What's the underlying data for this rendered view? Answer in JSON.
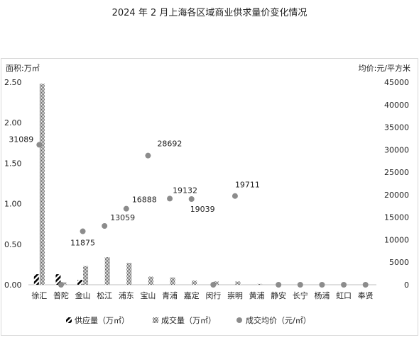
{
  "chart_data": {
    "type": "bar+scatter",
    "title": "2024 年 2 月上海各区域商业供求量价变化情况",
    "y_left_label": "面积:万㎡",
    "y_right_label": "均价:元/平方米",
    "y_left_ticks": [
      "0.00",
      "0.50",
      "1.00",
      "1.50",
      "2.00",
      "2.50"
    ],
    "y_right_ticks": [
      "0",
      "5000",
      "10000",
      "15000",
      "20000",
      "25000",
      "30000",
      "35000",
      "40000",
      "45000"
    ],
    "ylim_left": [
      0,
      2.5
    ],
    "ylim_right": [
      0,
      45000
    ],
    "categories": [
      "徐汇",
      "普陀",
      "金山",
      "松江",
      "浦东",
      "宝山",
      "青浦",
      "嘉定",
      "闵行",
      "崇明",
      "黄浦",
      "静安",
      "长宁",
      "杨浦",
      "虹口",
      "奉贤"
    ],
    "series": [
      {
        "name": "供应量（万㎡）",
        "kind": "bar",
        "axis": "left",
        "pattern": "diag",
        "color": "#000000",
        "values": [
          0.13,
          0.13,
          0.06,
          0,
          0,
          0,
          0,
          0,
          0,
          0,
          0,
          0,
          0,
          0,
          0,
          0
        ]
      },
      {
        "name": "成交量（万㎡）",
        "kind": "bar",
        "axis": "left",
        "pattern": "check",
        "color": "#555555",
        "values": [
          2.48,
          0.03,
          0.23,
          0.34,
          0.27,
          0.1,
          0.09,
          0.05,
          0.04,
          0.04,
          0.01,
          0,
          0,
          0,
          0,
          0
        ]
      },
      {
        "name": "成交均价（元/㎡）",
        "kind": "scatter",
        "axis": "right",
        "color": "#8c8c8c",
        "values": [
          31089,
          0,
          11875,
          13059,
          16888,
          28692,
          19132,
          19039,
          0,
          19711,
          null,
          0,
          0,
          0,
          0,
          0
        ],
        "labels": [
          "31089",
          null,
          "11875",
          "13059",
          "16888",
          "28692",
          "19132",
          "19039",
          null,
          "19711",
          null,
          null,
          null,
          null,
          null,
          null
        ]
      }
    ],
    "legend_position": "bottom",
    "grid": false
  }
}
